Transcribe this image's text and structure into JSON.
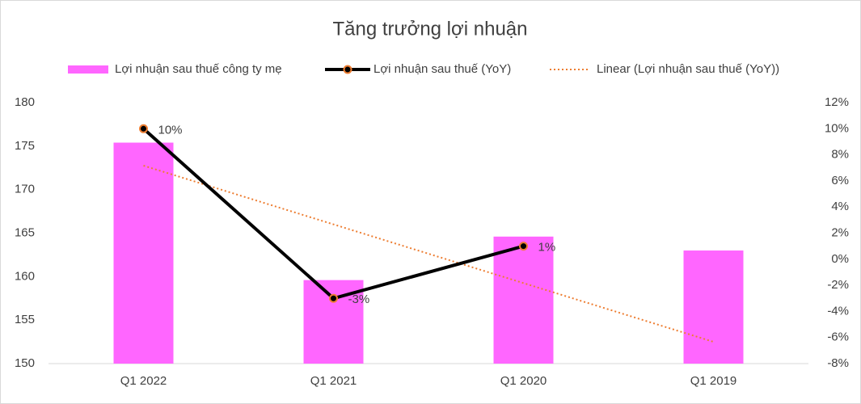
{
  "chart_data": {
    "type": "bar-line",
    "title": "Tăng trưởng lợi nhuận",
    "categories": [
      "Q1 2022",
      "Q1 2021",
      "Q1 2020",
      "Q1 2019"
    ],
    "series": [
      {
        "name": "Lợi nhuận sau thuế công ty mẹ",
        "type": "bar",
        "color": "#ff66ff",
        "values": [
          175.4,
          159.6,
          164.6,
          163.0
        ]
      },
      {
        "name": "Lợi nhuận sau thuế (YoY)",
        "type": "line",
        "axis": "y2",
        "color": "#000000",
        "marker_color": "#ed7d31",
        "values": [
          10,
          -3,
          1,
          null
        ],
        "value_labels": [
          "10%",
          "-3%",
          "1%",
          null
        ]
      },
      {
        "name": "Linear (Lợi nhuận sau thuế (YoY))",
        "type": "trend",
        "axis": "y2",
        "color": "#ed7d31",
        "values": [
          7.17,
          2.67,
          -1.83,
          -6.33
        ]
      }
    ],
    "ylim": [
      150,
      180
    ],
    "yticks": [
      150,
      155,
      160,
      165,
      170,
      175,
      180
    ],
    "y2lim": [
      -8,
      12
    ],
    "y2ticks": [
      {
        "value": -8,
        "label": "-8%"
      },
      {
        "value": -6,
        "label": "-6%"
      },
      {
        "value": -4,
        "label": "-4%"
      },
      {
        "value": -2,
        "label": "-2%"
      },
      {
        "value": 0,
        "label": "0%"
      },
      {
        "value": 2,
        "label": "2%"
      },
      {
        "value": 4,
        "label": "4%"
      },
      {
        "value": 6,
        "label": "6%"
      },
      {
        "value": 8,
        "label": "8%"
      },
      {
        "value": 10,
        "label": "10%"
      },
      {
        "value": 12,
        "label": "12%"
      }
    ],
    "grid": false,
    "legend": "top"
  }
}
